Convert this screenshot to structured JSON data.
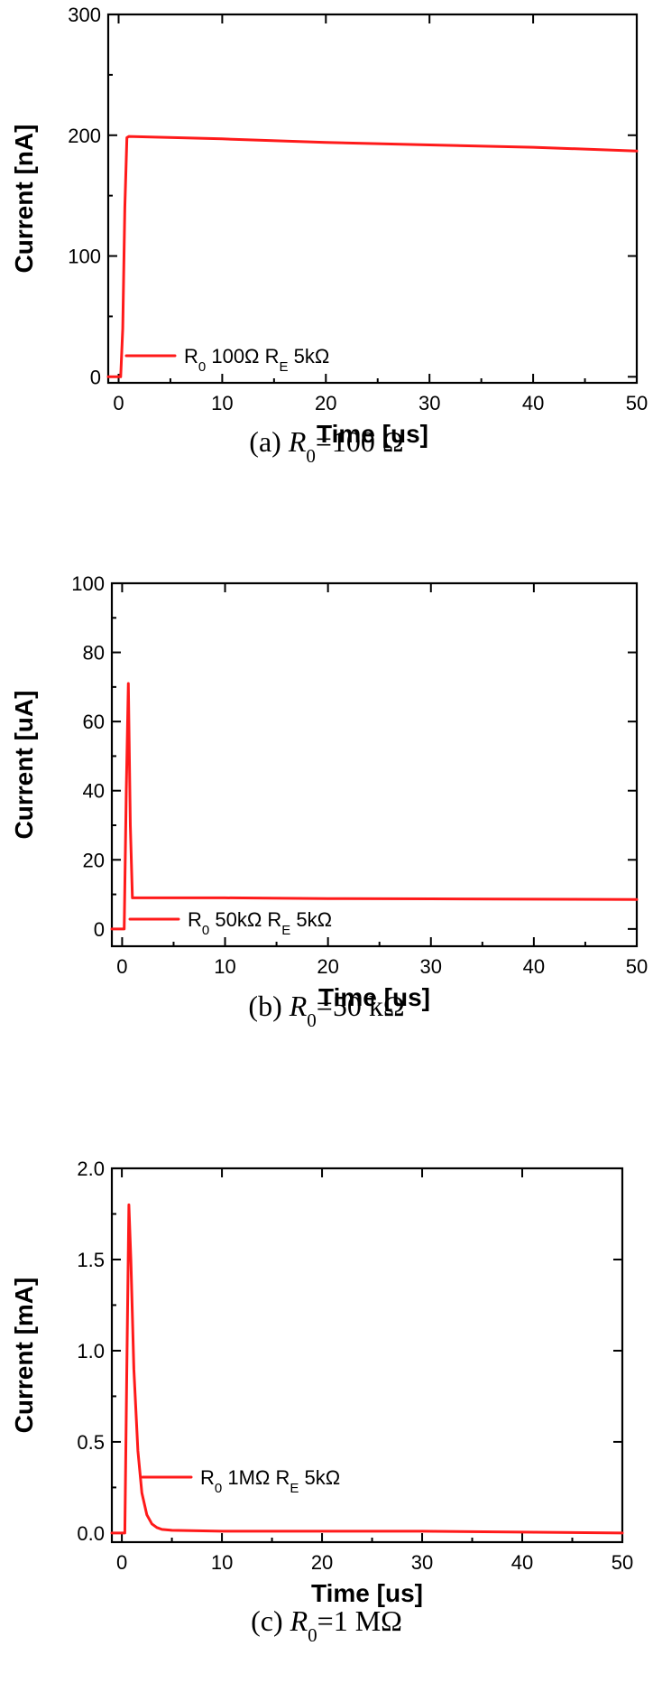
{
  "colors": {
    "series": "#ff1a1a",
    "axis": "#000000"
  },
  "panels": [
    {
      "caption_prefix": "(a)",
      "caption_var": "R",
      "caption_sub": "0",
      "caption_value": "=100 Ω",
      "legend": {
        "base": "R",
        "sub1": "0",
        "mid": " 100Ω R",
        "sub2": "E",
        "tail": " 5kΩ"
      }
    },
    {
      "caption_prefix": "(b)",
      "caption_var": "R",
      "caption_sub": "0",
      "caption_value": "=50 kΩ",
      "legend": {
        "base": "R",
        "sub1": "0",
        "mid": " 50kΩ R",
        "sub2": "E",
        "tail": " 5kΩ"
      }
    },
    {
      "caption_prefix": "(c)",
      "caption_var": "R",
      "caption_sub": "0",
      "caption_value": "=1 MΩ",
      "legend": {
        "base": "R",
        "sub1": "0",
        "mid": " 1MΩ R",
        "sub2": "E",
        "tail": " 5kΩ"
      }
    }
  ],
  "chart_data": [
    {
      "type": "line",
      "xlabel": "Time [us]",
      "ylabel": "Current [nA]",
      "xlim": [
        -1,
        50
      ],
      "ylim": [
        -5,
        300
      ],
      "xticks": [
        0,
        10,
        20,
        30,
        40,
        50
      ],
      "yticks": [
        0,
        100,
        200,
        300
      ],
      "legend_position": "lower-left",
      "series": [
        {
          "name": "R0 100Ω RE 5kΩ",
          "color": "#ff1a1a",
          "x": [
            -1,
            0.2,
            0.4,
            0.6,
            0.8,
            1,
            10,
            20,
            30,
            40,
            50
          ],
          "y": [
            0,
            0,
            40,
            140,
            198,
            199,
            197,
            194,
            192,
            190,
            187
          ]
        }
      ]
    },
    {
      "type": "line",
      "xlabel": "Time [us]",
      "ylabel": "Current [uA]",
      "xlim": [
        -1,
        50
      ],
      "ylim": [
        -5,
        100
      ],
      "xticks": [
        0,
        10,
        20,
        30,
        40,
        50
      ],
      "yticks": [
        0,
        20,
        40,
        60,
        80,
        100
      ],
      "legend_position": "lower-left",
      "series": [
        {
          "name": "R0 50kΩ RE 5kΩ",
          "color": "#ff1a1a",
          "x": [
            -1,
            0.2,
            0.4,
            0.6,
            0.8,
            1.0,
            1.2,
            10,
            20,
            30,
            40,
            50
          ],
          "y": [
            0,
            0,
            40,
            71,
            30,
            9,
            9,
            9,
            8.8,
            8.7,
            8.6,
            8.5
          ]
        }
      ]
    },
    {
      "type": "line",
      "xlabel": "Time [us]",
      "ylabel": "Current [mA]",
      "xlim": [
        -1,
        50
      ],
      "ylim": [
        -0.05,
        2.0
      ],
      "xticks": [
        0,
        10,
        20,
        30,
        40,
        50
      ],
      "yticks": [
        0.0,
        0.5,
        1.0,
        1.5,
        2.0
      ],
      "ytick_labels": [
        "0.0",
        "0.5",
        "1.0",
        "1.5",
        "2.0"
      ],
      "legend_position": "lower-left",
      "series": [
        {
          "name": "R0 1MΩ RE 5kΩ",
          "color": "#ff1a1a",
          "x": [
            -1,
            0.3,
            0.5,
            0.7,
            0.9,
            1.2,
            1.6,
            2.0,
            2.5,
            3.0,
            3.5,
            4.0,
            5.0,
            10,
            20,
            30,
            40,
            50
          ],
          "y": [
            0,
            0,
            0.9,
            1.8,
            1.5,
            0.9,
            0.45,
            0.22,
            0.1,
            0.05,
            0.03,
            0.02,
            0.015,
            0.01,
            0.01,
            0.01,
            0.005,
            0.0
          ]
        }
      ]
    }
  ]
}
